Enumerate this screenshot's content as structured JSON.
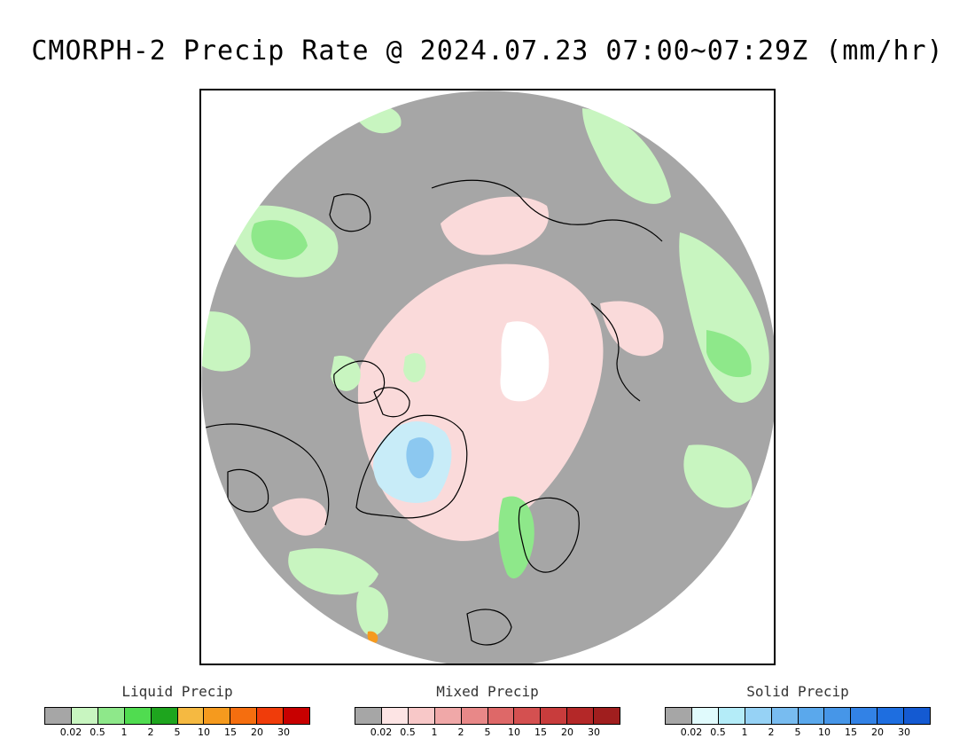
{
  "title": "CMORPH-2 Precip Rate @ 2024.07.23 07:00~07:29Z (mm/hr)",
  "map": {
    "projection": "north-polar-stereographic",
    "colors": {
      "no_precip": "#a6a6a6",
      "liquid_light": "#c8f5c0",
      "liquid_medium": "#8ee88a",
      "liquid_heavy": "#3ec43e",
      "liquid_orange": "#f59a1e",
      "mixed_light": "#fadada",
      "solid_light": "#c8ecf8",
      "solid_medium": "#8cc8f0",
      "no_data": "#ffffff",
      "coastline": "#000000"
    }
  },
  "legends": [
    {
      "title": "Liquid Precip",
      "colors": [
        "#a6a6a6",
        "#c8f5c0",
        "#8ee88a",
        "#50dc50",
        "#1ea51e",
        "#f5b941",
        "#f59a1e",
        "#f56e0f",
        "#f03c0a",
        "#c80000"
      ],
      "ticks": [
        "0.02",
        "0.5",
        "1",
        "2",
        "5",
        "10",
        "15",
        "20",
        "30"
      ]
    },
    {
      "title": "Mixed Precip",
      "colors": [
        "#a6a6a6",
        "#fde4e4",
        "#f8c8c8",
        "#f0a8a8",
        "#e88888",
        "#de6868",
        "#d45050",
        "#c83c3c",
        "#b42828",
        "#a01e1e"
      ],
      "ticks": [
        "0.02",
        "0.5",
        "1",
        "2",
        "5",
        "10",
        "15",
        "20",
        "30"
      ]
    },
    {
      "title": "Solid Precip",
      "colors": [
        "#a6a6a6",
        "#e0fafc",
        "#b4ecf8",
        "#96d2f5",
        "#78bcf0",
        "#5aa8ec",
        "#4696e8",
        "#3282e6",
        "#1e6ee0",
        "#145ad2"
      ],
      "ticks": [
        "0.02",
        "0.5",
        "1",
        "2",
        "5",
        "10",
        "15",
        "20",
        "30"
      ]
    }
  ]
}
